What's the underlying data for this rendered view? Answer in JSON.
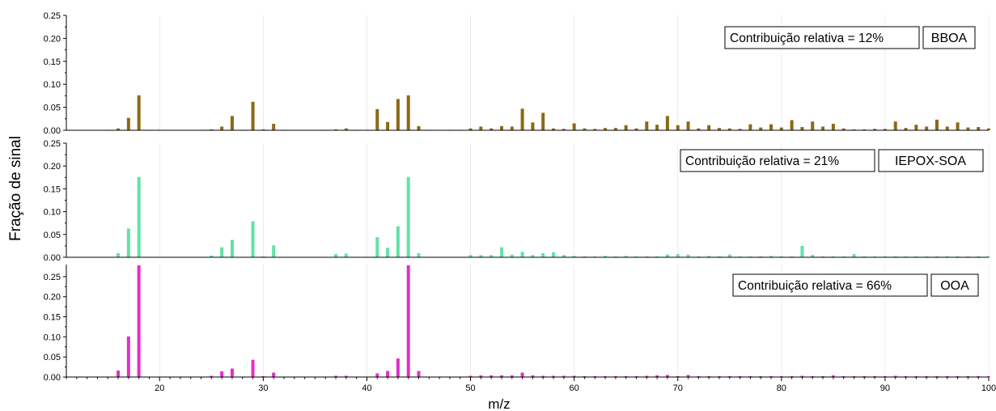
{
  "chart_data": {
    "type": "bar",
    "ylabel": "Fração de sinal",
    "xlabel": "m/z",
    "x_axis": {
      "range": [
        11,
        100
      ],
      "ticks": [
        20,
        30,
        40,
        50,
        60,
        70,
        80,
        90,
        100
      ]
    },
    "grid": "vertical",
    "panels": [
      {
        "name": "BBOA",
        "annotation": "Contribuição relativa = 12%",
        "color": "#8B6914",
        "ylim": [
          0,
          0.25
        ],
        "yticks": [
          "0.00",
          "0.05",
          "0.10",
          "0.15",
          "0.20",
          "0.25"
        ],
        "mz": [
          15,
          16,
          17,
          18,
          19,
          20,
          24,
          25,
          26,
          27,
          28,
          29,
          30,
          31,
          32,
          36,
          37,
          38,
          39,
          40,
          41,
          42,
          43,
          44,
          45,
          46,
          47,
          48,
          49,
          50,
          51,
          52,
          53,
          54,
          55,
          56,
          57,
          58,
          59,
          60,
          61,
          62,
          63,
          64,
          65,
          66,
          67,
          68,
          69,
          70,
          71,
          72,
          73,
          74,
          75,
          76,
          77,
          78,
          79,
          80,
          81,
          82,
          83,
          84,
          85,
          86,
          87,
          88,
          89,
          90,
          91,
          92,
          93,
          94,
          95,
          96,
          97,
          98,
          99,
          100
        ],
        "values": [
          0.001,
          0.004,
          0.027,
          0.076,
          0.001,
          0.001,
          0.001,
          0.002,
          0.008,
          0.031,
          0.001,
          0.062,
          0.002,
          0.014,
          0.001,
          0.001,
          0.002,
          0.004,
          0.001,
          0.001,
          0.046,
          0.018,
          0.068,
          0.076,
          0.009,
          0.001,
          0.001,
          0.001,
          0.001,
          0.004,
          0.008,
          0.004,
          0.009,
          0.008,
          0.047,
          0.017,
          0.038,
          0.004,
          0.003,
          0.015,
          0.004,
          0.003,
          0.005,
          0.005,
          0.011,
          0.004,
          0.019,
          0.012,
          0.031,
          0.011,
          0.019,
          0.004,
          0.011,
          0.005,
          0.004,
          0.003,
          0.013,
          0.006,
          0.013,
          0.006,
          0.022,
          0.007,
          0.019,
          0.008,
          0.014,
          0.004,
          0.002,
          0.002,
          0.003,
          0.003,
          0.019,
          0.005,
          0.012,
          0.008,
          0.023,
          0.008,
          0.017,
          0.006,
          0.007,
          0.004
        ]
      },
      {
        "name": "IEPOX-SOA",
        "annotation": "Contribuição relativa = 21%",
        "color": "#5FE3A7",
        "ylim": [
          0,
          0.25
        ],
        "yticks": [
          "0.00",
          "0.05",
          "0.10",
          "0.15",
          "0.20",
          "0.25"
        ],
        "mz": [
          15,
          16,
          17,
          18,
          19,
          20,
          24,
          25,
          26,
          27,
          28,
          29,
          30,
          31,
          32,
          36,
          37,
          38,
          39,
          40,
          41,
          42,
          43,
          44,
          45,
          46,
          47,
          48,
          49,
          50,
          51,
          52,
          53,
          54,
          55,
          56,
          57,
          58,
          59,
          60,
          61,
          62,
          63,
          64,
          65,
          66,
          67,
          68,
          69,
          70,
          71,
          72,
          73,
          74,
          75,
          76,
          77,
          78,
          79,
          80,
          81,
          82,
          83,
          84,
          85,
          86,
          87,
          88,
          89,
          90,
          91,
          92,
          93,
          94,
          95,
          96,
          97,
          98,
          99,
          100
        ],
        "values": [
          0.001,
          0.009,
          0.063,
          0.176,
          0.001,
          0.001,
          0.001,
          0.004,
          0.022,
          0.038,
          0.001,
          0.079,
          0.002,
          0.026,
          0.001,
          0.001,
          0.007,
          0.008,
          0.001,
          0.001,
          0.044,
          0.021,
          0.068,
          0.176,
          0.009,
          0.001,
          0.001,
          0.001,
          0.001,
          0.005,
          0.005,
          0.005,
          0.022,
          0.006,
          0.012,
          0.005,
          0.009,
          0.011,
          0.005,
          0.003,
          0.002,
          0.002,
          0.003,
          0.002,
          0.003,
          0.002,
          0.002,
          0.002,
          0.006,
          0.007,
          0.006,
          0.002,
          0.003,
          0.002,
          0.006,
          0.002,
          0.002,
          0.002,
          0.003,
          0.002,
          0.002,
          0.025,
          0.005,
          0.002,
          0.002,
          0.002,
          0.007,
          0.002,
          0.002,
          0.002,
          0.002,
          0.002,
          0.002,
          0.002,
          0.002,
          0.002,
          0.002,
          0.002,
          0.002,
          0.002
        ]
      },
      {
        "name": "OOA",
        "annotation": "Contribuição relativa = 66%",
        "color": "#E22FC8",
        "ylim": [
          0,
          0.28
        ],
        "yticks": [
          "0.00",
          "0.05",
          "0.10",
          "0.15",
          "0.20",
          "0.25"
        ],
        "mz": [
          15,
          16,
          17,
          18,
          19,
          20,
          24,
          25,
          26,
          27,
          28,
          29,
          30,
          31,
          32,
          36,
          37,
          38,
          39,
          40,
          41,
          42,
          43,
          44,
          45,
          46,
          47,
          48,
          49,
          50,
          51,
          52,
          53,
          54,
          55,
          56,
          57,
          58,
          59,
          60,
          61,
          62,
          63,
          64,
          65,
          66,
          67,
          68,
          69,
          70,
          71,
          72,
          73,
          74,
          75,
          76,
          77,
          78,
          79,
          80,
          81,
          82,
          83,
          84,
          85,
          86,
          87,
          88,
          89,
          90,
          91,
          92,
          93,
          94,
          95,
          96,
          97,
          98,
          99,
          100
        ],
        "values": [
          0.001,
          0.016,
          0.101,
          0.278,
          0.001,
          0.001,
          0.001,
          0.003,
          0.014,
          0.021,
          0.001,
          0.043,
          0.002,
          0.011,
          0.001,
          0.001,
          0.003,
          0.003,
          0.001,
          0.001,
          0.009,
          0.015,
          0.046,
          0.278,
          0.015,
          0.001,
          0.001,
          0.001,
          0.001,
          0.003,
          0.004,
          0.004,
          0.004,
          0.004,
          0.011,
          0.004,
          0.003,
          0.003,
          0.003,
          0.003,
          0.002,
          0.002,
          0.002,
          0.002,
          0.002,
          0.002,
          0.003,
          0.004,
          0.005,
          0.002,
          0.005,
          0.002,
          0.002,
          0.002,
          0.002,
          0.002,
          0.002,
          0.002,
          0.002,
          0.002,
          0.002,
          0.003,
          0.002,
          0.002,
          0.004,
          0.002,
          0.002,
          0.002,
          0.002,
          0.002,
          0.003,
          0.002,
          0.002,
          0.002,
          0.002,
          0.002,
          0.002,
          0.002,
          0.002,
          0.002
        ]
      }
    ]
  }
}
